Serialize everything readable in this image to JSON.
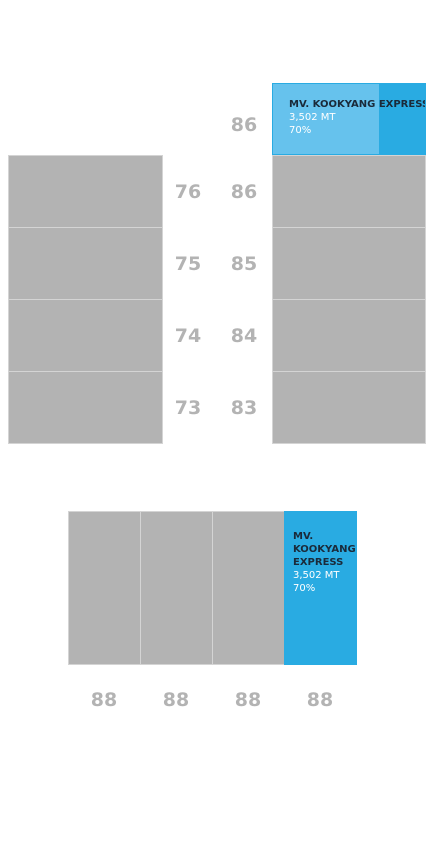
{
  "top_area": {
    "left_column": [
      {
        "id": "76"
      },
      {
        "id": "75"
      },
      {
        "id": "74"
      },
      {
        "id": "73"
      }
    ],
    "left_numbers": [
      "76",
      "75",
      "74",
      "73"
    ],
    "right_numbers": [
      "86",
      "86",
      "85",
      "84",
      "83"
    ],
    "occupied_slot": {
      "number": "86",
      "vessel": "MV. KOOKYANG EXPRESS",
      "tonnage": "3,502 MT",
      "percent_label": "70%",
      "fill_fraction": 0.7
    }
  },
  "bottom_area": {
    "numbers": [
      "88",
      "88",
      "88",
      "88"
    ],
    "occupied_slot": {
      "vessel": "MV. KOOKYANG EXPRESS",
      "tonnage": "3,502 MT",
      "percent_label": "70%"
    }
  },
  "colors": {
    "empty": "#b3b3b3",
    "occupied": "#29abe2",
    "partial_fill": "#66c2ed",
    "label": "#b3b3b3"
  }
}
